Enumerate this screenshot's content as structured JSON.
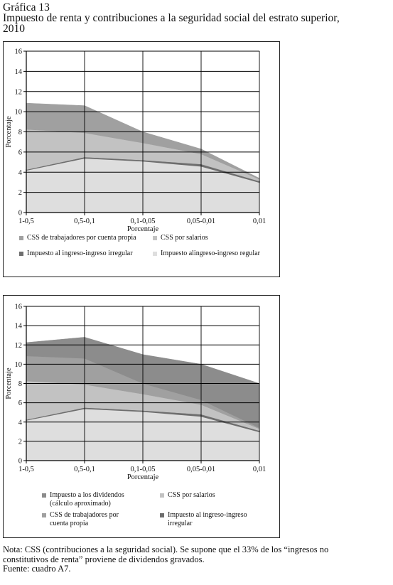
{
  "header": {
    "title_line1": "Gráfica 13",
    "title_line2": "Impuesto de renta y contribuciones a la seguridad social del estrato superior,",
    "title_line3": "2010"
  },
  "colors": {
    "regular": "#dedede",
    "irregular": "#6e6e6e",
    "salarios": "#c2c2c2",
    "cuenta_propia": "#a0a0a0",
    "dividendos": "#8c8c8c"
  },
  "chart_data": [
    {
      "type": "area",
      "stacked": true,
      "categories": [
        "1-0,5",
        "0,5-0,1",
        "0,1-0,05",
        "0,05-0,01",
        "0,01"
      ],
      "xlabel": "Porcentaje",
      "ylabel": "Porcentaje",
      "ylim": [
        0,
        16
      ],
      "yticks": [
        "0",
        "2",
        "4",
        "6",
        "8",
        "10",
        "12",
        "14",
        "16"
      ],
      "grid": true,
      "series": [
        {
          "key": "regular",
          "name": "Impuesto alingreso-ingreso regular",
          "values": [
            4.2,
            5.4,
            5.1,
            4.6,
            3.0
          ]
        },
        {
          "key": "irregular",
          "name": "Impuesto al ingreso-ingreso irregular",
          "values": [
            0.05,
            0.1,
            0.1,
            0.2,
            0.1
          ]
        },
        {
          "key": "salarios",
          "name": "CSS por salarios",
          "values": [
            4.0,
            2.4,
            1.7,
            1.0,
            0.2
          ]
        },
        {
          "key": "cuenta_propia",
          "name": "CSS de trabajadores por cuenta propia",
          "values": [
            2.6,
            2.7,
            1.1,
            0.5,
            0.1
          ]
        }
      ],
      "legend": {
        "position": "bottom",
        "left": [
          {
            "key": "cuenta_propia",
            "text": "CSS de trabajadores por cuenta propia"
          },
          {
            "key": "irregular",
            "text": "Impuesto al ingreso-ingreso irregular"
          }
        ],
        "right": [
          {
            "key": "salarios",
            "text": "CSS por salarios"
          },
          {
            "key": "regular",
            "text": "Impuesto alingreso-ingreso regular"
          }
        ]
      }
    },
    {
      "type": "area",
      "stacked": true,
      "categories": [
        "1-0,5",
        "0,5-0,1",
        "0,1-0,05",
        "0,05-0,01",
        "0,01"
      ],
      "xlabel": "Porcentaje",
      "ylabel": "Porcentaje",
      "ylim": [
        0,
        16
      ],
      "yticks": [
        "0",
        "2",
        "4",
        "6",
        "8",
        "10",
        "12",
        "14",
        "16"
      ],
      "grid": true,
      "series": [
        {
          "key": "regular",
          "name": "Impuesto alingreso-ingreso regular",
          "values": [
            4.2,
            5.4,
            5.1,
            4.6,
            3.0
          ]
        },
        {
          "key": "irregular",
          "name": "Impuesto al ingreso-ingreso irregular",
          "values": [
            0.05,
            0.1,
            0.1,
            0.2,
            0.1
          ]
        },
        {
          "key": "salarios",
          "name": "CSS por salarios",
          "values": [
            4.0,
            2.4,
            1.7,
            1.0,
            0.2
          ]
        },
        {
          "key": "cuenta_propia",
          "name": "CSS de trabajadores por cuenta propia",
          "values": [
            2.6,
            2.7,
            1.1,
            0.5,
            0.1
          ]
        },
        {
          "key": "dividendos",
          "name": "Impuesto a los dividendos (cálculo aproximado)",
          "values": [
            1.4,
            2.2,
            3.0,
            3.7,
            4.6
          ]
        }
      ],
      "legend": {
        "position": "bottom",
        "left": [
          {
            "key": "dividendos",
            "text_lines": [
              "Impuesto a los dividendos",
              "(cálculo aproximado)"
            ]
          },
          {
            "key": "cuenta_propia",
            "text_lines": [
              "CSS de trabajadores por",
              "cuenta propia"
            ]
          }
        ],
        "right": [
          {
            "key": "salarios",
            "text_lines": [
              "CSS por salarios"
            ]
          },
          {
            "key": "irregular",
            "text_lines": [
              "Impuesto al ingreso-ingreso",
              "irregular"
            ]
          }
        ]
      }
    }
  ],
  "note": {
    "line1": "Nota: CSS (contribuciones a la seguridad social). Se supone que el 33% de los “ingresos no",
    "line2": "constitutivos de renta” proviene de dividendos gravados.",
    "line3": "Fuente: cuadro A7."
  }
}
